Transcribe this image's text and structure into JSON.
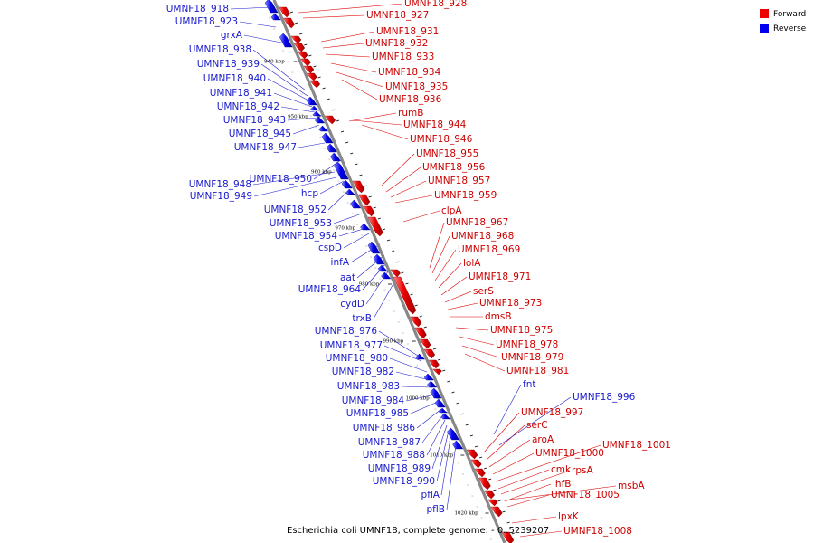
{
  "caption": "Escherichia coli UMNF18, complete genome. - 0..5239207",
  "legend": [
    {
      "label": "Forward",
      "color": "#ee0000"
    },
    {
      "label": "Reverse",
      "color": "#0000ee"
    }
  ],
  "ticks": [
    "940 kbp",
    "950 kbp",
    "960 kbp",
    "970 kbp",
    "980 kbp",
    "990 kbp",
    "1000 kbp",
    "1010 kbp",
    "1020 kbp"
  ],
  "forward_labels": [
    "UMNF18_928",
    "UMNF18_927",
    "UMNF18_931",
    "UMNF18_932",
    "UMNF18_933",
    "UMNF18_934",
    "UMNF18_935",
    "UMNF18_936",
    "rumB",
    "UMNF18_944",
    "UMNF18_946",
    "UMNF18_955",
    "UMNF18_956",
    "UMNF18_957",
    "UMNF18_959",
    "clpA",
    "UMNF18_967",
    "UMNF18_968",
    "UMNF18_969",
    "lolA",
    "UMNF18_971",
    "serS",
    "UMNF18_973",
    "dmsB",
    "UMNF18_975",
    "UMNF18_978",
    "UMNF18_979",
    "UMNF18_981",
    "UMNF18_997",
    "serC",
    "aroA",
    "UMNF18_1000",
    "UMNF18_1001",
    "cmk",
    "rpsA",
    "msbA",
    "ihfB",
    "UMNF18_1005",
    "lpxK",
    "UMNF18_1008"
  ],
  "reverse_labels": [
    "UMNF18_918",
    "UMNF18_923",
    "grxA",
    "UMNF18_938",
    "UMNF18_939",
    "UMNF18_940",
    "UMNF18_941",
    "UMNF18_942",
    "UMNF18_943",
    "UMNF18_945",
    "UMNF18_947",
    "UMNF18_950",
    "UMNF18_948",
    "UMNF18_949",
    "hcp",
    "UMNF18_952",
    "UMNF18_953",
    "UMNF18_954",
    "cspD",
    "infA",
    "aat",
    "UMNF18_964",
    "cydD",
    "trxB",
    "UMNF18_976",
    "UMNF18_977",
    "UMNF18_980",
    "UMNF18_982",
    "UMNF18_983",
    "UMNF18_984",
    "UMNF18_985",
    "UMNF18_986",
    "UMNF18_987",
    "UMNF18_988",
    "UMNF18_989",
    "UMNF18_990",
    "pflA",
    "pflB",
    "fnt",
    "UMNF18_996"
  ]
}
